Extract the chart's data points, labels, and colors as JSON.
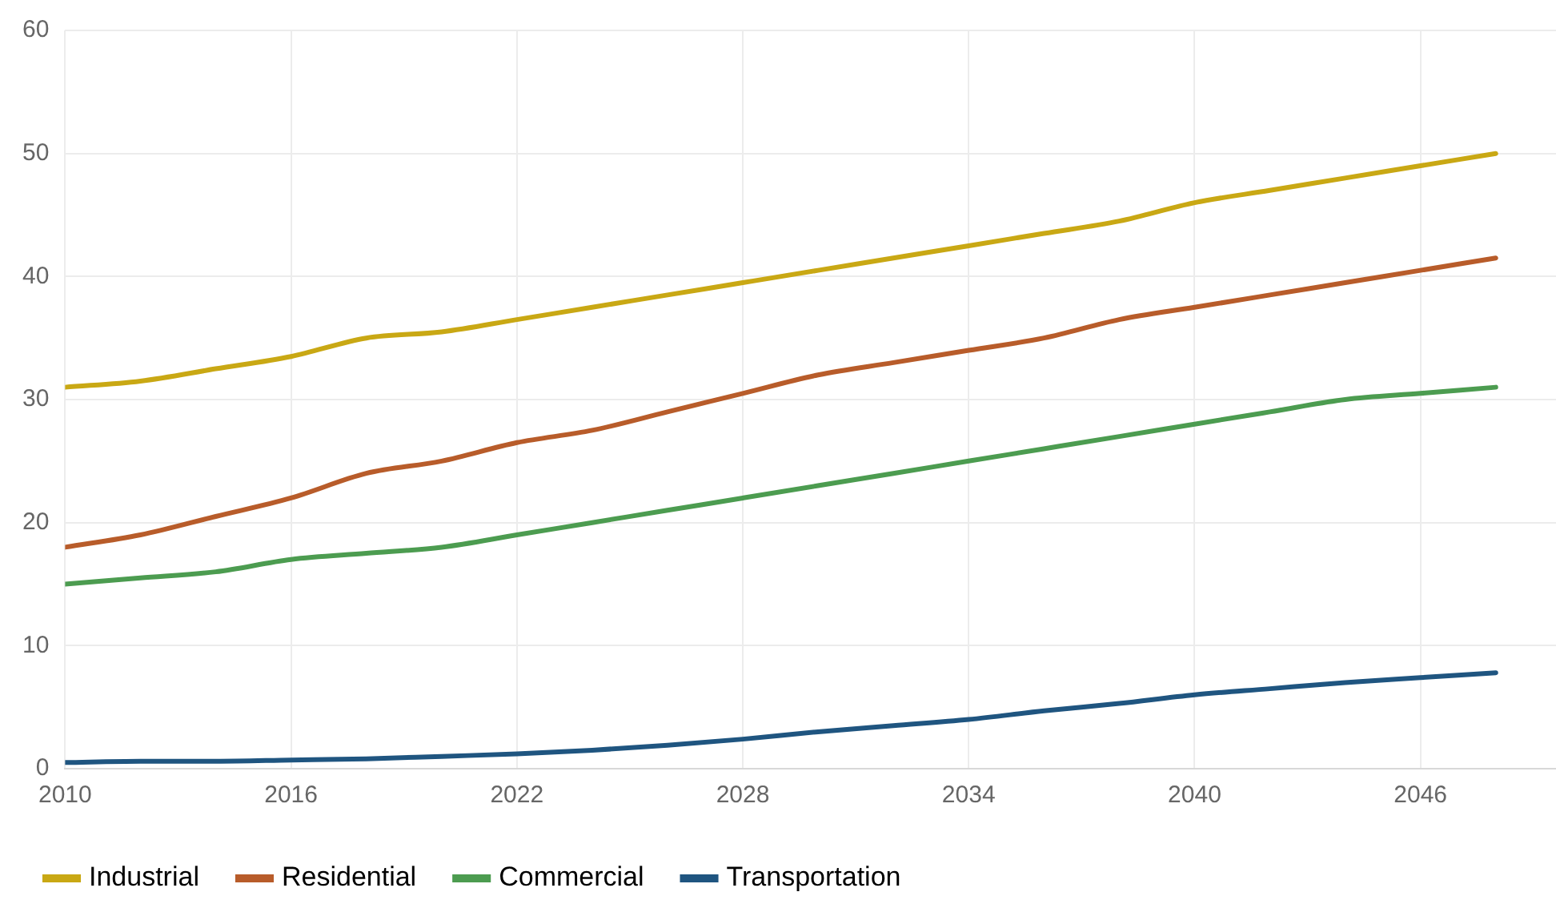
{
  "chart_data": {
    "type": "line",
    "x": [
      2010,
      2012,
      2014,
      2016,
      2018,
      2020,
      2022,
      2024,
      2026,
      2028,
      2030,
      2032,
      2034,
      2036,
      2038,
      2040,
      2042,
      2044,
      2046,
      2048
    ],
    "xlim": [
      2010,
      2049.6
    ],
    "xticks": [
      2010,
      2016,
      2022,
      2028,
      2034,
      2040,
      2046
    ],
    "ylim": [
      0,
      60
    ],
    "yticks": [
      0,
      10,
      20,
      30,
      40,
      50,
      60
    ],
    "grid": true,
    "legend": "bottom left",
    "marker": "none",
    "line_style": "solid",
    "series": [
      {
        "name": "Industrial",
        "color": "#c9a814",
        "values": [
          31,
          31.5,
          32.5,
          33.5,
          35,
          35.5,
          36.5,
          37.5,
          38.5,
          39.5,
          40.5,
          41.5,
          42.5,
          43.5,
          44.5,
          46,
          47,
          48,
          49,
          50
        ]
      },
      {
        "name": "Residential",
        "color": "#b85c2a",
        "values": [
          18,
          19,
          20.5,
          22,
          24,
          25,
          26.5,
          27.5,
          29,
          30.5,
          32,
          33,
          34,
          35,
          36.5,
          37.5,
          38.5,
          39.5,
          40.5,
          41.5
        ]
      },
      {
        "name": "Commercial",
        "color": "#4c9c50",
        "values": [
          15,
          15.5,
          16,
          17,
          17.5,
          18,
          19,
          20,
          21,
          22,
          23,
          24,
          25,
          26,
          27,
          28,
          29,
          30,
          30.5,
          31
        ]
      },
      {
        "name": "Transportation",
        "color": "#1f5580",
        "values": [
          0.5,
          0.6,
          0.6,
          0.7,
          0.8,
          1.0,
          1.2,
          1.5,
          1.9,
          2.4,
          3.0,
          3.5,
          4.0,
          4.7,
          5.3,
          6.0,
          6.5,
          7.0,
          7.4,
          7.8
        ]
      }
    ]
  }
}
